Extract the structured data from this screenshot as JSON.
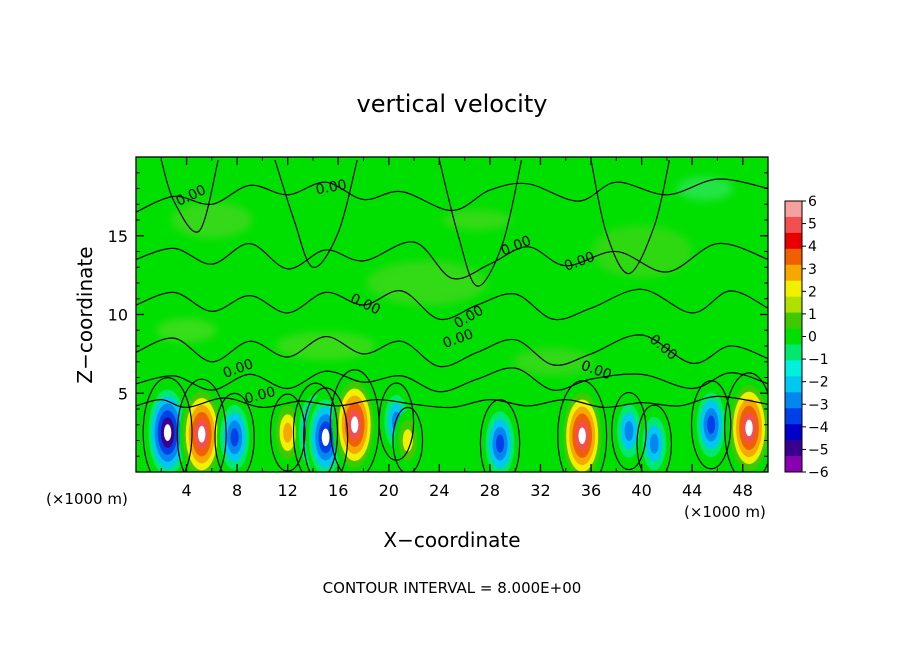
{
  "chart_data": {
    "type": "heatmap",
    "title": "vertical velocity",
    "xlabel": "X−coordinate",
    "ylabel": "Z−coordinate",
    "x_unit_left": "(×1000 m)",
    "x_unit_right": "(×1000 m)",
    "xlim": [
      0,
      50
    ],
    "ylim": [
      0,
      20
    ],
    "x_ticks": [
      4,
      8,
      12,
      16,
      20,
      24,
      28,
      32,
      36,
      40,
      44,
      48
    ],
    "y_ticks": [
      5,
      10,
      15
    ],
    "contour_labels": [
      "0.00",
      "0.00",
      "0.00",
      "0.00",
      "0.00",
      "0.00",
      "0.00",
      "0.00",
      "0.00",
      "0.00",
      "0.00"
    ],
    "colorbar": {
      "ticks": [
        "6",
        "5",
        "4",
        "3",
        "2",
        "1",
        "0",
        "−1",
        "−2",
        "−3",
        "−4",
        "−5",
        "−6"
      ],
      "colors": [
        "#f7a0a0",
        "#f25050",
        "#e80000",
        "#f06000",
        "#f5a800",
        "#f0f000",
        "#b0e000",
        "#40c800",
        "#00e000",
        "#00e870",
        "#00f0e0",
        "#00c8f0",
        "#0088f0",
        "#0040e8",
        "#0000c8",
        "#3a0090",
        "#8800b0"
      ]
    },
    "cells": [
      {
        "x": 2.5,
        "z": 2.5,
        "w": -6
      },
      {
        "x": 5.2,
        "z": 2.4,
        "w": 6
      },
      {
        "x": 7.8,
        "z": 2.2,
        "w": -4
      },
      {
        "x": 12.0,
        "z": 2.5,
        "w": 3
      },
      {
        "x": 14.2,
        "z": 2.5,
        "w": -5
      },
      {
        "x": 15.0,
        "z": 2.2,
        "w": -5
      },
      {
        "x": 17.3,
        "z": 3.0,
        "w": 6
      },
      {
        "x": 20.6,
        "z": 3.2,
        "w": -3
      },
      {
        "x": 21.5,
        "z": 2.0,
        "w": 2
      },
      {
        "x": 28.8,
        "z": 1.8,
        "w": -4
      },
      {
        "x": 35.3,
        "z": 2.3,
        "w": 6
      },
      {
        "x": 39.0,
        "z": 2.6,
        "w": -3
      },
      {
        "x": 41.0,
        "z": 1.8,
        "w": -3
      },
      {
        "x": 45.5,
        "z": 3.0,
        "w": -4
      },
      {
        "x": 48.5,
        "z": 2.8,
        "w": 6
      }
    ]
  },
  "footer": {
    "contour_interval": "CONTOUR INTERVAL = 8.000E+00"
  }
}
